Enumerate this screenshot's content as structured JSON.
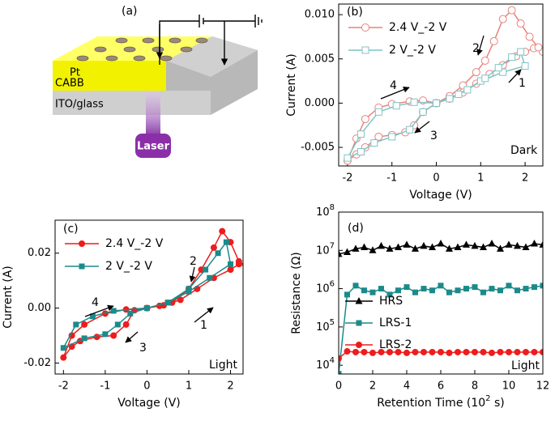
{
  "diagram": {
    "label": "(a)",
    "layers": [
      "Pt",
      "CABB",
      "ITO/glass"
    ],
    "source": "Laser"
  },
  "chart_data": [
    {
      "type": "line",
      "xlabel": "Voltage (V)",
      "ylabel": "Current (A)",
      "annotations": [
        "(b)",
        "1",
        "2",
        "3",
        "4",
        "Dark"
      ],
      "xlim": [
        -2.2,
        2.4
      ],
      "xticks": [
        -2,
        -1,
        0,
        1,
        2
      ],
      "ylim": [
        -0.0071,
        0.0112
      ],
      "yticks": [
        {
          "value": -0.005,
          "label": "-0.005"
        },
        {
          "value": 0,
          "label": "0.000"
        },
        {
          "value": 0.005,
          "label": "0.005"
        },
        {
          "value": 0.01,
          "label": "0.010"
        }
      ],
      "legend": "upper left",
      "series": [
        {
          "name": "2.4 V_-2 V",
          "color": "#e8827c",
          "marker": "circle-open",
          "x": [
            0,
            0.3,
            0.6,
            0.9,
            1.2,
            1.5,
            1.8,
            2.0,
            2.2,
            2.4,
            2.3,
            2.1,
            1.9,
            1.7,
            1.5,
            1.3,
            1.1,
            0.9,
            0.6,
            0.3,
            0,
            -0.3,
            -0.5,
            -0.7,
            -1.0,
            -1.3,
            -1.6,
            -1.8,
            -2.0,
            -1.8,
            -1.6,
            -1.3,
            -1.0,
            -0.6,
            -0.3,
            0
          ],
          "values": [
            0,
            0.0005,
            0.0012,
            0.0022,
            0.0033,
            0.0043,
            0.0053,
            0.0058,
            0.0062,
            0.0058,
            0.0063,
            0.0075,
            0.009,
            0.0105,
            0.0095,
            0.007,
            0.0048,
            0.0035,
            0.002,
            0.0008,
            0,
            -0.001,
            -0.0025,
            -0.0033,
            -0.0036,
            -0.0038,
            -0.005,
            -0.0058,
            -0.0065,
            -0.004,
            -0.0018,
            -0.0005,
            -0.0001,
            0.0002,
            0.0003,
            0
          ]
        },
        {
          "name": "2 V_-2 V",
          "color": "#7fc4c6",
          "marker": "square-open",
          "x": [
            0,
            0.5,
            1.0,
            1.5,
            2.0,
            1.9,
            1.7,
            1.4,
            1.1,
            0.7,
            0.3,
            0,
            -0.3,
            -0.6,
            -1.0,
            -1.4,
            -1.7,
            -2.0,
            -1.7,
            -1.3,
            -0.9,
            -0.5,
            0
          ],
          "values": [
            0,
            0.001,
            0.0025,
            0.0035,
            0.0042,
            0.0058,
            0.0052,
            0.004,
            0.0028,
            0.0015,
            0.0005,
            0,
            -0.001,
            -0.003,
            -0.0038,
            -0.0045,
            -0.0055,
            -0.0062,
            -0.0035,
            -0.001,
            -0.0003,
            0.0001,
            0
          ]
        }
      ]
    },
    {
      "type": "line",
      "xlabel": "Voltage (V)",
      "ylabel": "Current (A)",
      "annotations": [
        "(c)",
        "1",
        "2",
        "3",
        "4",
        "Light"
      ],
      "xlim": [
        -2.2,
        2.3
      ],
      "xticks": [
        -2,
        -1,
        0,
        1,
        2
      ],
      "ylim": [
        -0.024,
        0.032
      ],
      "yticks": [
        -0.02,
        {
          "value": 0,
          "label": "0.00"
        },
        0.02
      ],
      "legend": "upper left",
      "series": [
        {
          "name": "2.4 V_-2 V",
          "color": "#ee1c1c",
          "marker": "circle",
          "x": [
            0,
            0.4,
            0.8,
            1.2,
            1.6,
            2.0,
            2.2,
            2.4,
            2.2,
            2.0,
            1.8,
            1.6,
            1.3,
            1.0,
            0.6,
            0.3,
            0,
            -0.3,
            -0.5,
            -0.8,
            -1.2,
            -1.6,
            -1.8,
            -2.0,
            -1.8,
            -1.5,
            -1.0,
            -0.5,
            0
          ],
          "values": [
            0,
            0.001,
            0.003,
            0.007,
            0.011,
            0.014,
            0.016,
            0.015,
            0.017,
            0.024,
            0.028,
            0.022,
            0.014,
            0.007,
            0.002,
            0.0008,
            0,
            -0.0008,
            -0.006,
            -0.01,
            -0.0105,
            -0.012,
            -0.014,
            -0.018,
            -0.01,
            -0.006,
            -0.002,
            -0.0005,
            0
          ]
        },
        {
          "name": "2 V_-2 V",
          "color": "#1b8a8a",
          "marker": "square",
          "x": [
            0,
            0.5,
            1.0,
            1.5,
            2.0,
            1.9,
            1.7,
            1.4,
            1.0,
            0.5,
            0,
            -0.4,
            -0.7,
            -1.0,
            -1.5,
            -2.0,
            -1.7,
            -1.3,
            -0.8,
            0
          ],
          "values": [
            0,
            0.002,
            0.006,
            0.011,
            0.016,
            0.024,
            0.02,
            0.014,
            0.007,
            0.002,
            0,
            -0.002,
            -0.006,
            -0.0095,
            -0.011,
            -0.0145,
            -0.006,
            -0.003,
            -0.001,
            0
          ]
        }
      ]
    },
    {
      "type": "line",
      "xlabel": "Retention Time (10^2 s)",
      "ylabel": "Resistance (Ω)",
      "annotations": [
        "(d)",
        "Light"
      ],
      "xlim": [
        0,
        12
      ],
      "xticks": [
        0,
        2,
        4,
        6,
        8,
        10,
        12
      ],
      "log_y": true,
      "ylim": [
        5900,
        100000000
      ],
      "yticks": [
        {
          "value": 10000,
          "label": "10^4"
        },
        {
          "value": 100000,
          "label": "10^5"
        },
        {
          "value": 1000000,
          "label": "10^6"
        },
        {
          "value": 10000000,
          "label": "10^7"
        },
        {
          "value": 100000000,
          "label": "10^8"
        }
      ],
      "legend": "center left",
      "series": [
        {
          "name": "HRS",
          "color": "#000000",
          "marker": "triangle",
          "x": [
            0,
            0.5,
            1,
            1.5,
            2,
            2.5,
            3,
            3.5,
            4,
            4.5,
            5,
            5.5,
            6,
            6.5,
            7,
            7.5,
            8,
            8.5,
            9,
            9.5,
            10,
            10.5,
            11,
            11.5,
            12
          ],
          "values": [
            8000000,
            9000000,
            11000000,
            12000000,
            10000000,
            13000000,
            11000000,
            12000000,
            14000000,
            11000000,
            13000000,
            12000000,
            15000000,
            11000000,
            12000000,
            14000000,
            13000000,
            12000000,
            15000000,
            11000000,
            14000000,
            13000000,
            12000000,
            15000000,
            14000000
          ]
        },
        {
          "name": "LRS-1",
          "color": "#1b8a8a",
          "marker": "square",
          "x": [
            0,
            0.5,
            1,
            1.5,
            2,
            2.5,
            3,
            3.5,
            4,
            4.5,
            5,
            5.5,
            6,
            6.5,
            7,
            7.5,
            8,
            8.5,
            9,
            9.5,
            10,
            10.5,
            11,
            11.5,
            12
          ],
          "values": [
            6000,
            700000,
            1200000,
            900000,
            800000,
            1000000,
            700000,
            900000,
            1100000,
            800000,
            1000000,
            900000,
            1200000,
            800000,
            900000,
            1000000,
            1100000,
            800000,
            1000000,
            900000,
            1200000,
            900000,
            1000000,
            1100000,
            1200000
          ]
        },
        {
          "name": "LRS-2",
          "color": "#ee1c1c",
          "marker": "circle",
          "x": [
            0,
            0.5,
            1,
            1.5,
            2,
            2.5,
            3,
            3.5,
            4,
            4.5,
            5,
            5.5,
            6,
            6.5,
            7,
            7.5,
            8,
            8.5,
            9,
            9.5,
            10,
            10.5,
            11,
            11.5,
            12
          ],
          "values": [
            15000,
            23000,
            22000,
            22000,
            21000,
            22000,
            22000,
            22000,
            21000,
            22000,
            22000,
            22000,
            22000,
            21000,
            22000,
            22000,
            22000,
            22000,
            21000,
            22000,
            22000,
            22000,
            22000,
            22000,
            22000
          ]
        }
      ]
    }
  ]
}
